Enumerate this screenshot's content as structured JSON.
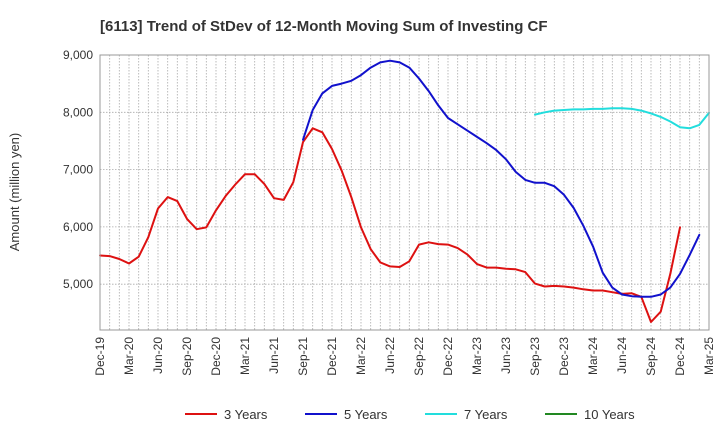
{
  "chart_data": {
    "type": "line",
    "title": "[6113]  Trend of StDev of 12-Month Moving Sum of Investing CF",
    "xlabel": "",
    "ylabel": "Amount (million yen)",
    "ylim": [
      4200,
      9000
    ],
    "yticks": [
      5000,
      6000,
      7000,
      8000,
      9000
    ],
    "ytick_labels": [
      "5,000",
      "6,000",
      "7,000",
      "8,000",
      "9,000"
    ],
    "xlim": [
      "2019-12",
      "2025-03"
    ],
    "xtick_labels": [
      "Dec-19",
      "Mar-20",
      "Jun-20",
      "Sep-20",
      "Dec-20",
      "Mar-21",
      "Jun-21",
      "Sep-21",
      "Dec-21",
      "Mar-22",
      "Jun-22",
      "Sep-22",
      "Dec-22",
      "Mar-23",
      "Jun-23",
      "Sep-23",
      "Dec-23",
      "Mar-24",
      "Jun-24",
      "Sep-24",
      "Dec-24",
      "Mar-25"
    ],
    "grid": true,
    "legend_position": "bottom",
    "series": [
      {
        "name": "3 Years",
        "color": "#dd1111",
        "start": "2019-12",
        "values": [
          5500,
          5490,
          5440,
          5360,
          5480,
          5820,
          6320,
          6520,
          6450,
          6140,
          5960,
          5990,
          6290,
          6540,
          6740,
          6920,
          6920,
          6750,
          6500,
          6470,
          6780,
          7480,
          7720,
          7650,
          7360,
          6980,
          6520,
          5990,
          5610,
          5380,
          5310,
          5300,
          5400,
          5690,
          5730,
          5700,
          5690,
          5630,
          5520,
          5350,
          5290,
          5290,
          5270,
          5260,
          5210,
          5010,
          4960,
          4970,
          4960,
          4940,
          4910,
          4890,
          4890,
          4860,
          4830,
          4840,
          4780,
          4340,
          4520,
          5180,
          5990
        ]
      },
      {
        "name": "5 Years",
        "color": "#1111cc",
        "start": "2021-09",
        "values": [
          7520,
          8040,
          8330,
          8460,
          8500,
          8550,
          8650,
          8780,
          8870,
          8900,
          8870,
          8780,
          8590,
          8370,
          8120,
          7900,
          7790,
          7680,
          7570,
          7460,
          7340,
          7180,
          6960,
          6820,
          6770,
          6770,
          6710,
          6560,
          6330,
          6020,
          5660,
          5200,
          4940,
          4820,
          4790,
          4780,
          4780,
          4820,
          4940,
          5180,
          5510,
          5860
        ]
      },
      {
        "name": "7 Years",
        "color": "#22dddd",
        "start": "2023-09",
        "values": [
          7960,
          8000,
          8030,
          8040,
          8050,
          8050,
          8060,
          8060,
          8070,
          8070,
          8060,
          8030,
          7980,
          7920,
          7840,
          7740,
          7720,
          7780,
          7990
        ]
      },
      {
        "name": "10 Years",
        "color": "#228822",
        "start": "2024-12",
        "values": []
      }
    ]
  }
}
